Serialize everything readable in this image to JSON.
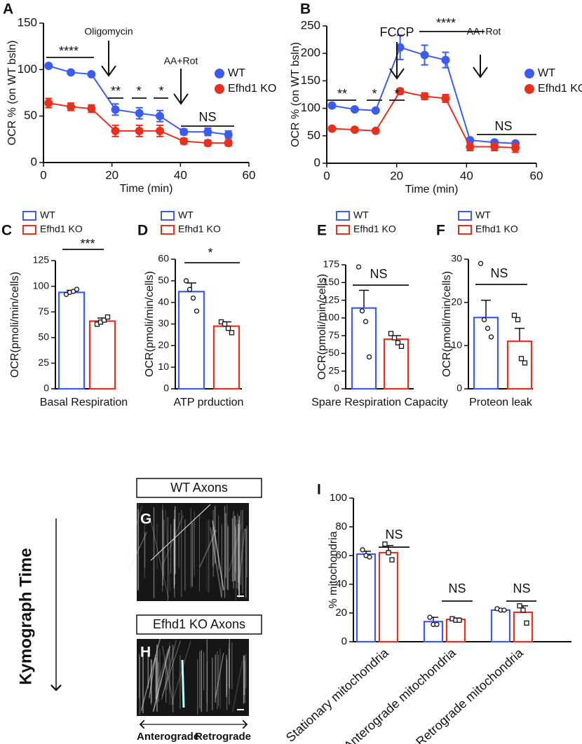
{
  "chart_data": [
    {
      "panel": "A",
      "type": "line",
      "xlabel": "Time (min)",
      "ylabel": "OCR % (on WT bsln)",
      "xlim": [
        0,
        60
      ],
      "xticks": [
        0,
        20,
        40,
        60
      ],
      "ylim": [
        0,
        150
      ],
      "yticks": [
        0,
        50,
        100,
        150
      ],
      "x": [
        1.5,
        8,
        14,
        21,
        28,
        34,
        41,
        48,
        54
      ],
      "series": [
        {
          "name": "WT",
          "color": "#3c5bf2",
          "values": [
            104,
            97,
            95,
            57,
            53,
            50,
            33,
            33,
            30
          ],
          "errors": [
            1,
            1,
            1,
            6,
            6,
            6,
            3,
            4,
            4
          ]
        },
        {
          "name": "Efhd1 KO",
          "color": "#e8301c",
          "values": [
            64,
            60,
            58,
            34,
            34,
            34,
            23,
            21,
            21
          ],
          "errors": [
            5,
            4,
            4,
            6,
            6,
            6,
            3,
            3,
            3
          ]
        }
      ],
      "annotations": [
        "****",
        "Oligomycin",
        "**",
        "*",
        "*",
        "AA+Rot",
        "NS"
      ]
    },
    {
      "panel": "B",
      "type": "line",
      "xlabel": "Time (min)",
      "ylabel": "OCR % (on WT bsln)",
      "xlim": [
        0,
        60
      ],
      "xticks": [
        0,
        20,
        40,
        60
      ],
      "ylim": [
        0,
        250
      ],
      "yticks": [
        0,
        50,
        100,
        150,
        200,
        250
      ],
      "x": [
        1.5,
        8,
        14,
        21,
        28,
        34,
        41,
        48,
        54
      ],
      "series": [
        {
          "name": "WT",
          "color": "#3c5bf2",
          "values": [
            105,
            98,
            96,
            211,
            197,
            188,
            42,
            38,
            36
          ],
          "errors": [
            3,
            2,
            2,
            22,
            18,
            14,
            3,
            3,
            3
          ]
        },
        {
          "name": "Efhd1 KO",
          "color": "#e8301c",
          "values": [
            63,
            61,
            59,
            131,
            122,
            118,
            30,
            30,
            28
          ],
          "errors": [
            3,
            2,
            2,
            5,
            6,
            7,
            7,
            7,
            8
          ]
        }
      ],
      "annotations": [
        "**",
        "*",
        "*",
        "FCCP",
        "****",
        "AA+Rot",
        "NS"
      ]
    },
    {
      "panel": "C",
      "type": "bar",
      "xlabel": "Basal Respiration",
      "ylabel": "OCR(pmoli/min/cells)",
      "ylim": [
        0,
        125
      ],
      "yticks": [
        0,
        25,
        50,
        75,
        100,
        125
      ],
      "legend": true,
      "series": [
        {
          "name": "WT",
          "color": "#3c5bf2",
          "values": [
            94
          ],
          "errors": [
            2
          ],
          "points": [
            [
              92,
              94,
              95,
              97
            ]
          ]
        },
        {
          "name": "Efhd1 KO",
          "color": "#e8301c",
          "values": [
            66
          ],
          "errors": [
            3
          ],
          "points": [
            [
              63,
              65,
              67,
              70
            ]
          ]
        }
      ],
      "annotations": [
        "***"
      ]
    },
    {
      "panel": "D",
      "type": "bar",
      "xlabel": "ATP prduction",
      "ylabel": "OCR(pmoli/min/cells)",
      "ylim": [
        0,
        60
      ],
      "yticks": [
        0,
        10,
        20,
        30,
        40,
        50,
        60
      ],
      "legend": true,
      "series": [
        {
          "name": "WT",
          "color": "#3c5bf2",
          "values": [
            45
          ],
          "errors": [
            4
          ],
          "points": [
            [
              50,
              46,
              42,
              36
            ]
          ]
        },
        {
          "name": "Efhd1 KO",
          "color": "#e8301c",
          "values": [
            29
          ],
          "errors": [
            2
          ],
          "points": [
            [
              31,
              30,
              28,
              26
            ]
          ]
        }
      ],
      "annotations": [
        "*"
      ]
    },
    {
      "panel": "E",
      "type": "bar",
      "xlabel": "Spare Respiration Capacity",
      "ylabel": "OCR(pmoli/min/cells)",
      "ylim": [
        0,
        175
      ],
      "yticks": [
        0,
        25,
        50,
        75,
        100,
        125,
        150,
        175
      ],
      "legend": true,
      "series": [
        {
          "name": "WT",
          "color": "#3c5bf2",
          "values": [
            114
          ],
          "errors": [
            25
          ],
          "points": [
            [
              172,
              110,
              95,
              45
            ]
          ]
        },
        {
          "name": "Efhd1 KO",
          "color": "#e8301c",
          "values": [
            70
          ],
          "errors": [
            5
          ],
          "points": [
            [
              78,
              72,
              65,
              60
            ]
          ]
        }
      ],
      "annotations": [
        "NS"
      ]
    },
    {
      "panel": "F",
      "type": "bar",
      "xlabel": "Proteon leak",
      "ylabel": "OCR(pmoli/min/cells)",
      "ylim": [
        0,
        30
      ],
      "yticks": [
        0,
        10,
        20,
        30
      ],
      "legend": true,
      "series": [
        {
          "name": "WT",
          "color": "#3c5bf2",
          "values": [
            16.5
          ],
          "errors": [
            4
          ],
          "points": [
            [
              29,
              16,
              14,
              12
            ]
          ]
        },
        {
          "name": "Efhd1 KO",
          "color": "#e8301c",
          "values": [
            11
          ],
          "errors": [
            3
          ],
          "points": [
            [
              17,
              16,
              7,
              6
            ]
          ]
        }
      ],
      "annotations": [
        "NS"
      ]
    },
    {
      "panel": "I",
      "type": "bar",
      "ylabel": "% mitochondria",
      "categories": [
        "Stationary mitochondria",
        "Anterograde mitochondria",
        "Retrograde mitochondria"
      ],
      "ylim": [
        0,
        100
      ],
      "yticks": [
        0,
        20,
        40,
        60,
        80,
        100
      ],
      "legend": false,
      "series": [
        {
          "name": "WT",
          "color": "#3c5bf2",
          "values": [
            61,
            14,
            22
          ],
          "errors": [
            2,
            3,
            1
          ],
          "points": [
            [
              64,
              60,
              59
            ],
            [
              17,
              12,
              12
            ],
            [
              23,
              22,
              22
            ]
          ]
        },
        {
          "name": "Efhd1 KO",
          "color": "#e8301c",
          "values": [
            62,
            15.5,
            20.5
          ],
          "errors": [
            5,
            1,
            4.5
          ],
          "points": [
            [
              68,
              62,
              57
            ],
            [
              16,
              15,
              15
            ],
            [
              25,
              22,
              13
            ]
          ]
        }
      ],
      "annotations": [
        "NS",
        "NS",
        "NS"
      ]
    }
  ],
  "kymographs": {
    "label": "Kymograph Time",
    "left": "Anterograde",
    "right": "Retrograde",
    "panels": [
      {
        "panel": "G",
        "title": "WT Axons"
      },
      {
        "panel": "H",
        "title": "Efhd1 KO Axons"
      }
    ]
  }
}
